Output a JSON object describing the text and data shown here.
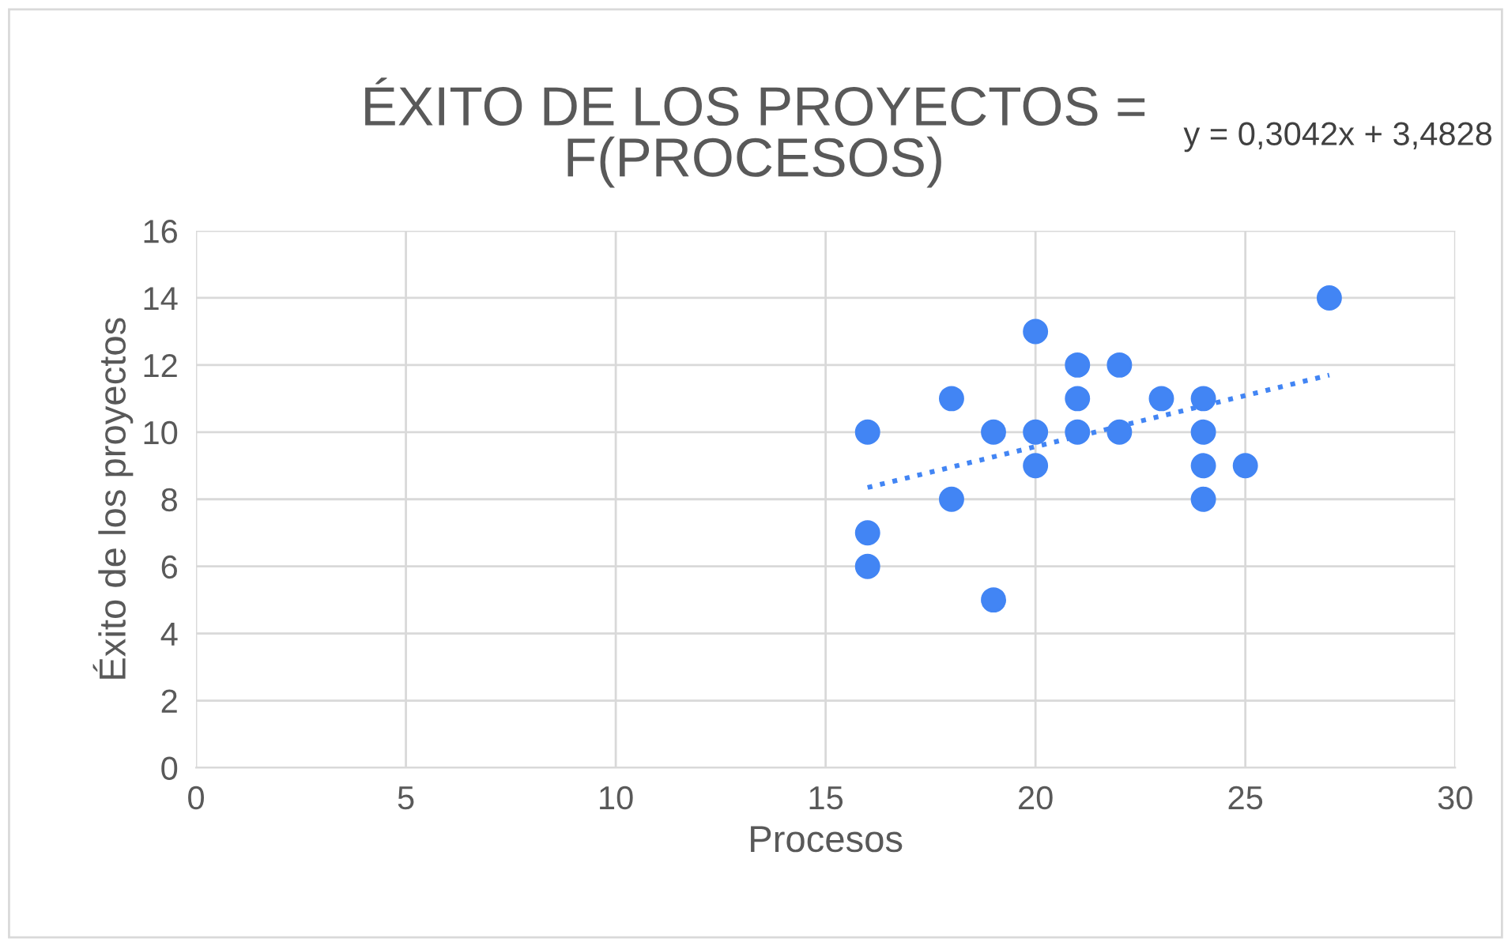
{
  "chart_data": {
    "type": "scatter",
    "title": "ÉXITO DE LOS PROYECTOS =\nF(PROCESOS)",
    "xlabel": "Procesos",
    "ylabel": "Éxito de los proyectos",
    "annotations": [
      "y = 0,3042x + 3,4828"
    ],
    "xlim": [
      0,
      30
    ],
    "xticks": [
      0,
      5,
      10,
      15,
      20,
      25,
      30
    ],
    "ylim": [
      0,
      16
    ],
    "yticks": [
      0,
      2,
      4,
      6,
      8,
      10,
      12,
      14,
      16
    ],
    "grid": true,
    "series": [
      {
        "color": "#4285f4",
        "marker": "circle",
        "x": [
          16,
          16,
          16,
          18,
          18,
          19,
          19,
          20,
          20,
          20,
          21,
          21,
          21,
          22,
          22,
          23,
          24,
          24,
          24,
          24,
          25,
          27
        ],
        "values": [
          10,
          7,
          6,
          11,
          8,
          10,
          5,
          13,
          10,
          9,
          12,
          11,
          10,
          12,
          10,
          11,
          11,
          10,
          9,
          8,
          9,
          14
        ]
      },
      {
        "type": "line",
        "color": "#4285f4",
        "line_style": "dotted",
        "marker": "none",
        "x": [
          16,
          27
        ],
        "values": [
          8.35,
          11.7
        ]
      }
    ]
  }
}
